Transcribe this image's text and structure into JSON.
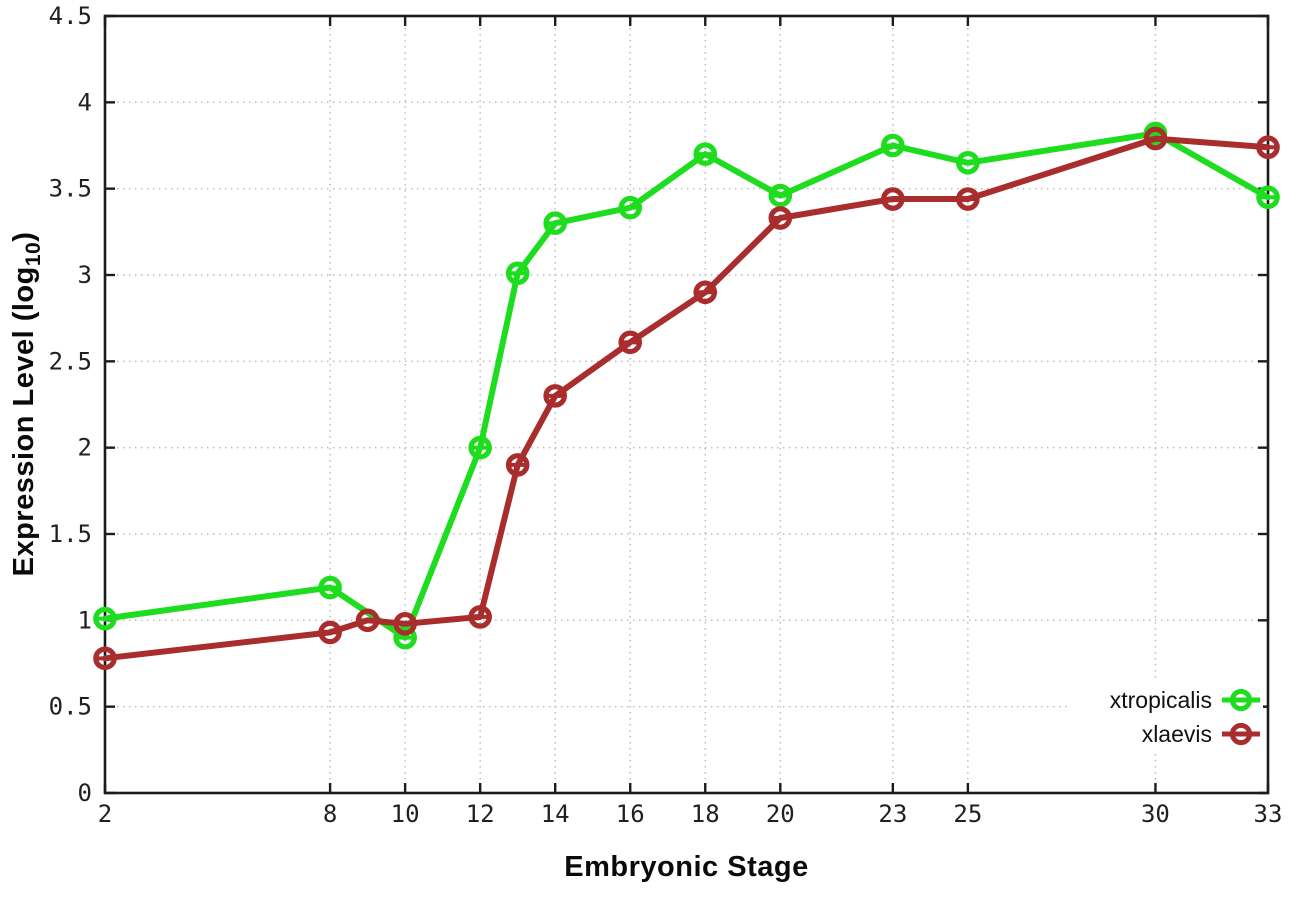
{
  "chart_data": {
    "type": "line",
    "title": "",
    "xlabel": "Embryonic Stage",
    "ylabel": "Expression Level (log10)",
    "ylabel_parts": {
      "prefix": "Expression Level (log",
      "subscript": "10",
      "suffix": ")"
    },
    "xlim": [
      2,
      33
    ],
    "ylim": [
      0,
      4.5
    ],
    "xticks": [
      2,
      8,
      10,
      12,
      14,
      16,
      18,
      20,
      23,
      25,
      30,
      33
    ],
    "yticks": [
      0,
      0.5,
      1,
      1.5,
      2,
      2.5,
      3,
      3.5,
      4,
      4.5
    ],
    "ytick_labels": [
      "0",
      "0.5",
      "1",
      "1.5",
      "2",
      "2.5",
      "3",
      "3.5",
      "4",
      "4.5"
    ],
    "grid": true,
    "grid_style": "dotted",
    "legend_position": "inside-bottom-right",
    "marker_style": "open circle with small y-error bar",
    "axis_color": "#1c1c1c",
    "grid_color": "#b9b9b9",
    "background": "#ffffff",
    "series": [
      {
        "name": "xtropicalis",
        "color": "#1edc1e",
        "x": [
          2,
          8,
          10,
          12,
          13,
          14,
          16,
          18,
          20,
          23,
          25,
          30,
          33
        ],
        "y": [
          1.01,
          1.19,
          0.9,
          2.0,
          3.01,
          3.3,
          3.39,
          3.7,
          3.46,
          3.75,
          3.65,
          3.82,
          3.45
        ]
      },
      {
        "name": "xlaevis",
        "color": "#aa2d2d",
        "x": [
          2,
          8,
          9,
          10,
          12,
          13,
          14,
          16,
          18,
          20,
          23,
          25,
          30,
          33
        ],
        "y": [
          0.78,
          0.93,
          1.0,
          0.98,
          1.02,
          1.9,
          2.3,
          2.61,
          2.9,
          3.33,
          3.44,
          3.44,
          3.79,
          3.74
        ]
      }
    ]
  }
}
